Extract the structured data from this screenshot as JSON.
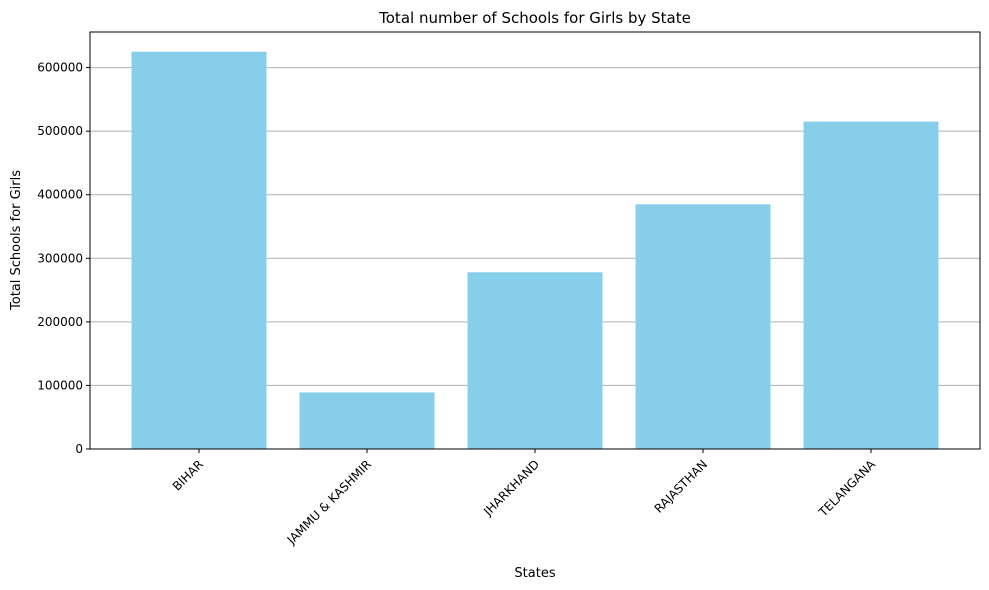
{
  "chart_data": {
    "type": "bar",
    "title": "Total number of Schools for Girls by State",
    "xlabel": "States",
    "ylabel": "Total Schools for Girls",
    "categories": [
      "BIHAR",
      "JAMMU & KASHMIR",
      "JHARKHAND",
      "RAJASTHAN",
      "TELANGANA"
    ],
    "values": [
      625000,
      89000,
      278000,
      385000,
      515000
    ],
    "ylim": [
      0,
      656000
    ],
    "yticks": [
      0,
      100000,
      200000,
      300000,
      400000,
      500000,
      600000
    ],
    "ytick_labels": [
      "0",
      "100000",
      "200000",
      "300000",
      "400000",
      "500000",
      "600000"
    ],
    "grid": "y",
    "bar_color": "#87CEEB",
    "legend": "none"
  }
}
